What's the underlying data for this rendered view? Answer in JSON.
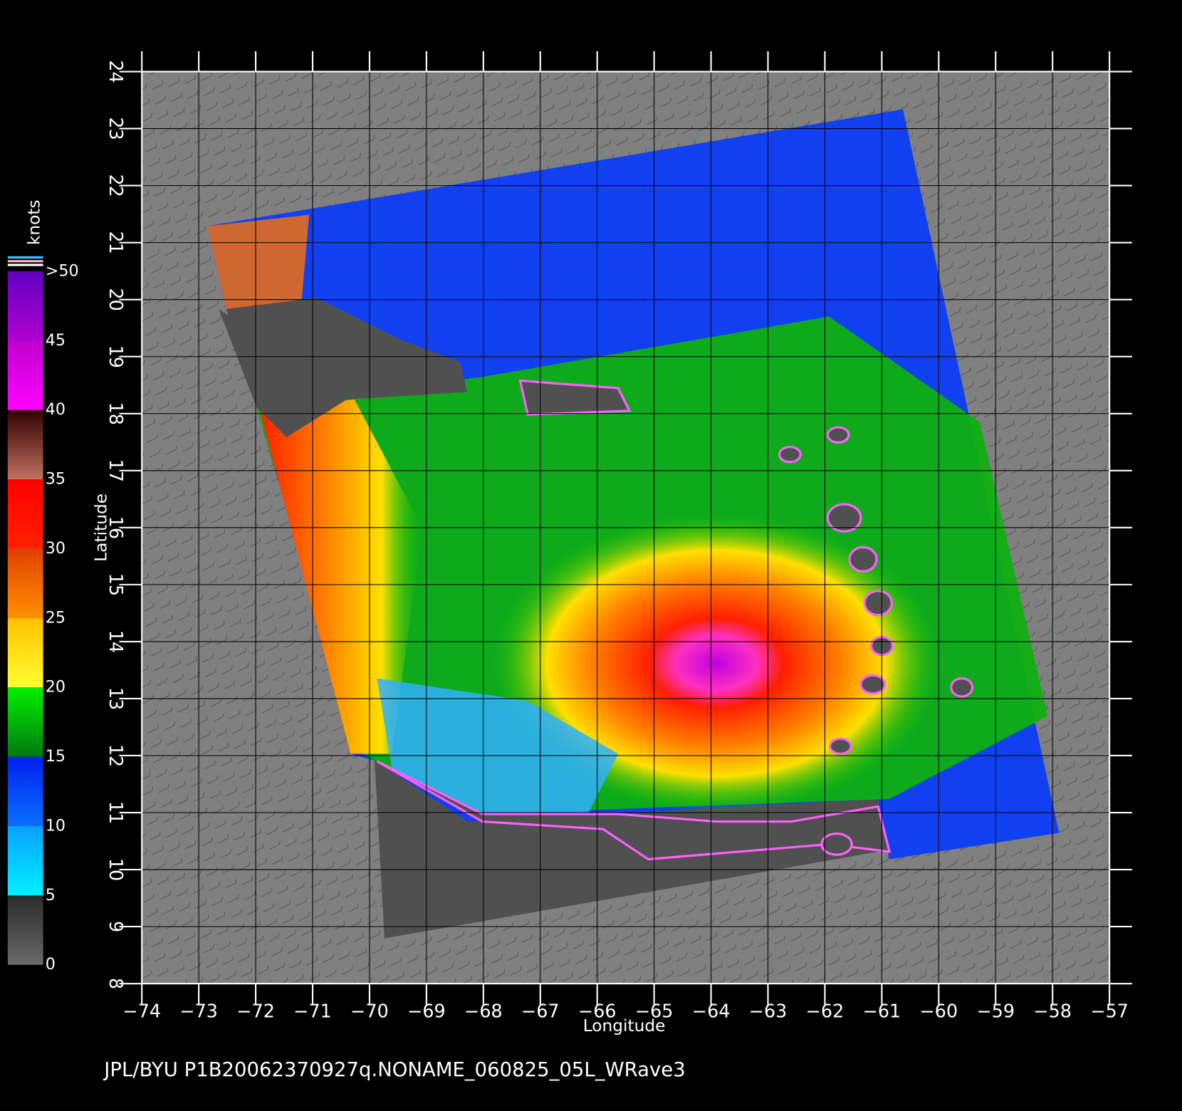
{
  "chart_data": {
    "type": "map",
    "xlabel": "Longitude",
    "ylabel": "Latitude",
    "footer": "JPL/BYU  P1B20062370927q.NONAME_060825_05L_WRave3",
    "xlim": [
      -74,
      -57
    ],
    "ylim": [
      8,
      24
    ],
    "xticks": [
      {
        "value": -74,
        "label": "−74"
      },
      {
        "value": -73,
        "label": "−73"
      },
      {
        "value": -72,
        "label": "−72"
      },
      {
        "value": -71,
        "label": "−71"
      },
      {
        "value": -70,
        "label": "−70"
      },
      {
        "value": -69,
        "label": "−69"
      },
      {
        "value": -68,
        "label": "−68"
      },
      {
        "value": -67,
        "label": "−67"
      },
      {
        "value": -66,
        "label": "−66"
      },
      {
        "value": -65,
        "label": "−65"
      },
      {
        "value": -64,
        "label": "−64"
      },
      {
        "value": -63,
        "label": "−63"
      },
      {
        "value": -62,
        "label": "−62"
      },
      {
        "value": -61,
        "label": "−61"
      },
      {
        "value": -60,
        "label": "−60"
      },
      {
        "value": -59,
        "label": "−59"
      },
      {
        "value": -58,
        "label": "−58"
      },
      {
        "value": -57,
        "label": "−57"
      }
    ],
    "yticks": [
      8,
      9,
      10,
      11,
      12,
      13,
      14,
      15,
      16,
      17,
      18,
      19,
      20,
      21,
      22,
      23,
      24
    ],
    "grid": true,
    "colorbar": {
      "label": "knots",
      "lim": [
        0,
        50
      ],
      "ticks": [
        0,
        5,
        10,
        15,
        20,
        25,
        30,
        35,
        40,
        45,
        {
          "value": 50,
          "label": ">50"
        }
      ],
      "colors": [
        [
          "#6a6a6a",
          "#2a2a2a"
        ],
        [
          "#00f0ff",
          "#0aa0ff"
        ],
        [
          "#0a70ff",
          "#0020f0"
        ],
        [
          "#007a10",
          "#00f000"
        ],
        [
          "#ffff30",
          "#ffc000"
        ],
        [
          "#ff9000",
          "#e04000"
        ],
        [
          "#ff2000",
          "#ff0000"
        ],
        [
          "#c07060",
          "#300000"
        ],
        [
          "#ff00ff",
          "#c000d0"
        ],
        [
          "#b000d0",
          "#6000c0"
        ]
      ]
    }
  }
}
